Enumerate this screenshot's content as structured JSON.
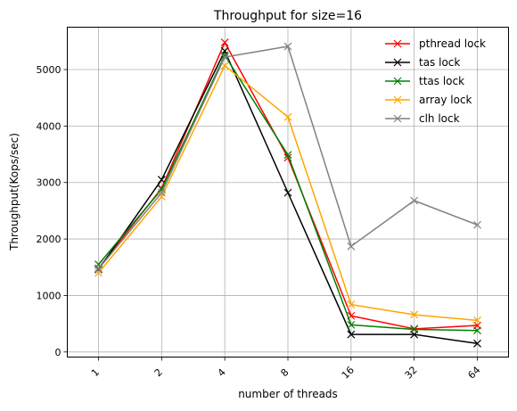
{
  "chart_data": {
    "type": "line",
    "title": "Throughput for size=16",
    "xlabel": "number of threads",
    "ylabel": "Throughput(Kops/sec)",
    "categories": [
      "1",
      "2",
      "4",
      "8",
      "16",
      "32",
      "64"
    ],
    "ylim": [
      -90,
      5750
    ],
    "yticks": [
      0,
      1000,
      2000,
      3000,
      4000,
      5000
    ],
    "grid": true,
    "legend_position": "top-right",
    "marker": "x",
    "series": [
      {
        "name": "pthread lock",
        "color": "#ff0000",
        "values": [
          1480,
          2900,
          5480,
          3440,
          640,
          410,
          470
        ]
      },
      {
        "name": "tas lock",
        "color": "#000000",
        "values": [
          1460,
          3050,
          5330,
          2820,
          310,
          310,
          150
        ]
      },
      {
        "name": "ttas lock",
        "color": "#008000",
        "values": [
          1550,
          2880,
          5250,
          3490,
          480,
          400,
          380
        ]
      },
      {
        "name": "array lock",
        "color": "#ffa500",
        "values": [
          1400,
          2750,
          5070,
          4160,
          840,
          660,
          560
        ]
      },
      {
        "name": "clh lock",
        "color": "#808080",
        "values": [
          1470,
          2820,
          5220,
          5410,
          1870,
          2680,
          2250
        ]
      }
    ]
  }
}
